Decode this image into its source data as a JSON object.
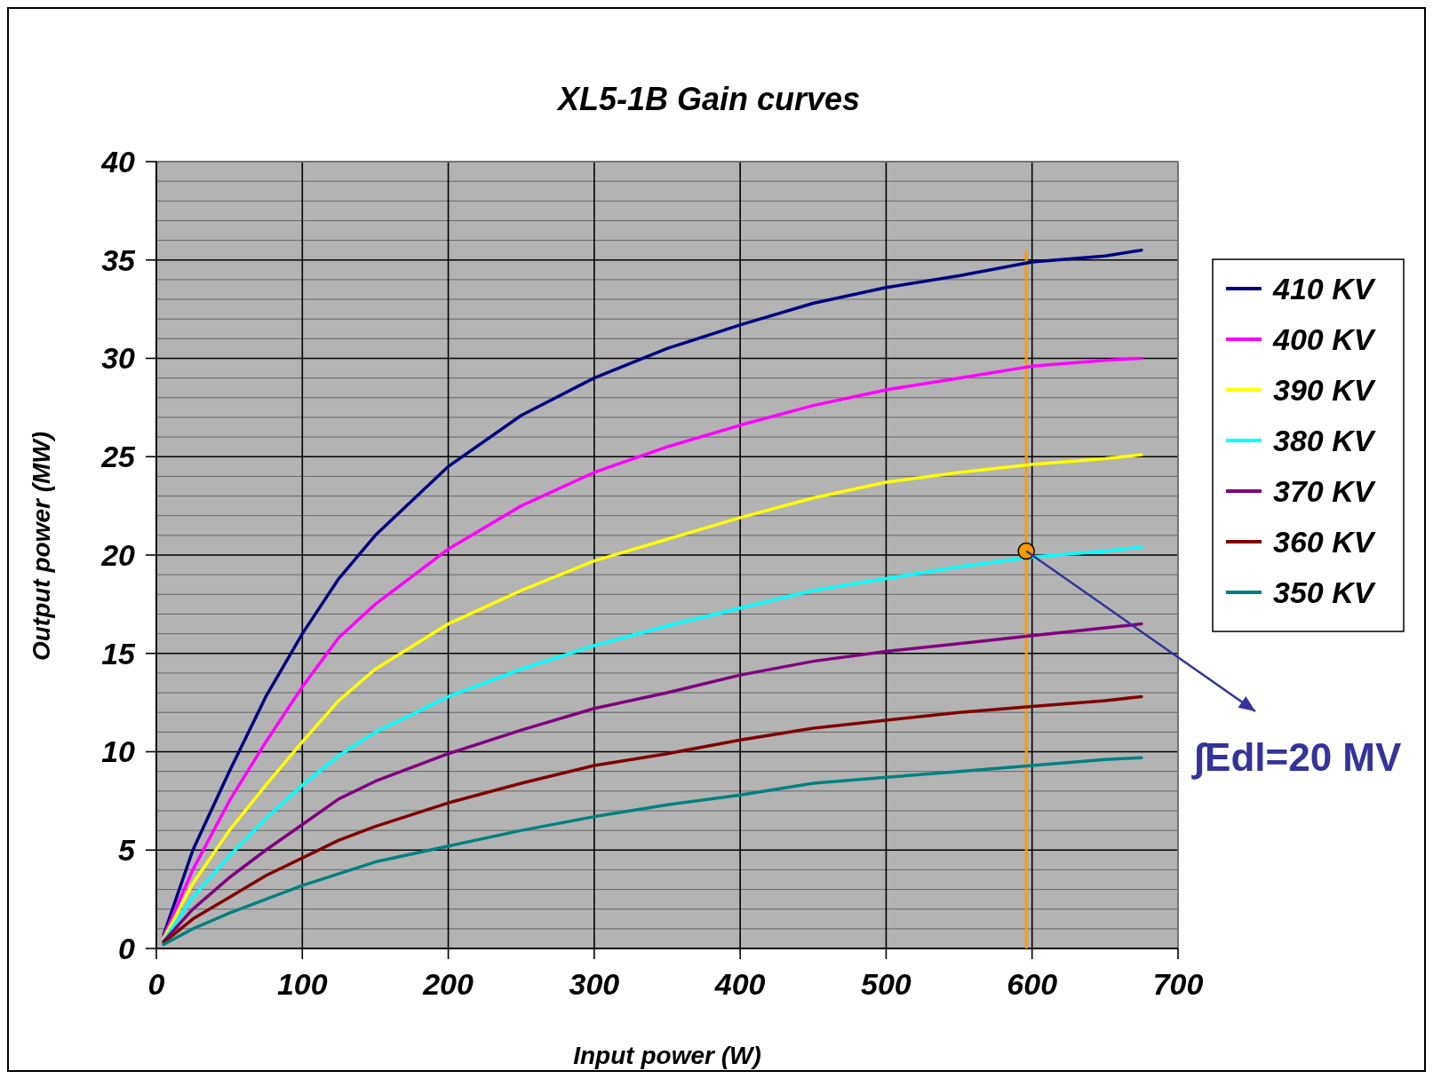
{
  "chart_data": {
    "type": "line",
    "title": "XL5-1B Gain curves",
    "xlabel": "Input power (W)",
    "ylabel": "Output power (MW)",
    "x": [
      5,
      25,
      50,
      75,
      100,
      125,
      150,
      200,
      250,
      300,
      350,
      400,
      450,
      500,
      550,
      600,
      650,
      675
    ],
    "series": [
      {
        "name": "410 KV",
        "color": "#000080",
        "values": [
          0.7,
          5,
          9,
          12.8,
          16,
          18.8,
          21,
          24.5,
          27.1,
          29,
          30.5,
          31.7,
          32.8,
          33.6,
          34.2,
          34.9,
          35.2,
          35.5
        ]
      },
      {
        "name": "400 KV",
        "color": "#ff00ff",
        "values": [
          0.6,
          4,
          7.5,
          10.5,
          13.3,
          15.8,
          17.5,
          20.3,
          22.5,
          24.2,
          25.5,
          26.6,
          27.6,
          28.4,
          29,
          29.6,
          29.9,
          30
        ]
      },
      {
        "name": "390 KV",
        "color": "#ffff00",
        "values": [
          0.5,
          3.3,
          6,
          8.3,
          10.5,
          12.6,
          14.2,
          16.5,
          18.2,
          19.7,
          20.8,
          21.9,
          22.9,
          23.7,
          24.2,
          24.6,
          24.9,
          25.1
        ]
      },
      {
        "name": "380 KV",
        "color": "#00ffff",
        "values": [
          0.4,
          2.6,
          4.7,
          6.6,
          8.3,
          9.8,
          11,
          12.8,
          14.2,
          15.4,
          16.4,
          17.3,
          18.2,
          18.8,
          19.4,
          19.9,
          20.2,
          20.4
        ]
      },
      {
        "name": "370 KV",
        "color": "#800080",
        "values": [
          0.35,
          2,
          3.6,
          5,
          6.3,
          7.6,
          8.5,
          9.9,
          11.1,
          12.2,
          13,
          13.9,
          14.6,
          15.1,
          15.5,
          15.9,
          16.3,
          16.5
        ]
      },
      {
        "name": "360 KV",
        "color": "#800000",
        "values": [
          0.3,
          1.5,
          2.6,
          3.7,
          4.6,
          5.5,
          6.2,
          7.4,
          8.4,
          9.3,
          9.9,
          10.6,
          11.2,
          11.6,
          12,
          12.3,
          12.6,
          12.8
        ]
      },
      {
        "name": "350 KV",
        "color": "#008080",
        "values": [
          0.2,
          1,
          1.8,
          2.5,
          3.2,
          3.8,
          4.4,
          5.2,
          6,
          6.7,
          7.3,
          7.8,
          8.4,
          8.7,
          9,
          9.3,
          9.6,
          9.7
        ]
      },
      {
        "type": "scatter",
        "color": "#ff9900",
        "x": [
          596
        ],
        "values": [
          20.2
        ],
        "marker": "circle"
      }
    ],
    "xlim": [
      0,
      700
    ],
    "xticks": [
      0,
      100,
      200,
      300,
      400,
      500,
      600,
      700
    ],
    "ylim": [
      0,
      40
    ],
    "yticks": [
      0,
      {
        "value": 1,
        "label": null
      },
      {
        "value": 2,
        "label": null
      },
      {
        "value": 3,
        "label": null
      },
      {
        "value": 4,
        "label": null
      },
      5,
      {
        "value": 6,
        "label": null
      },
      {
        "value": 7,
        "label": null
      },
      {
        "value": 8,
        "label": null
      },
      {
        "value": 9,
        "label": null
      },
      10,
      {
        "value": 11,
        "label": null
      },
      {
        "value": 12,
        "label": null
      },
      {
        "value": 13,
        "label": null
      },
      {
        "value": 14,
        "label": null
      },
      15,
      {
        "value": 16,
        "label": null
      },
      {
        "value": 17,
        "label": null
      },
      {
        "value": 18,
        "label": null
      },
      {
        "value": 19,
        "label": null
      },
      20,
      {
        "value": 21,
        "label": null
      },
      {
        "value": 22,
        "label": null
      },
      {
        "value": 23,
        "label": null
      },
      {
        "value": 24,
        "label": null
      },
      25,
      {
        "value": 26,
        "label": null
      },
      {
        "value": 27,
        "label": null
      },
      {
        "value": 28,
        "label": null
      },
      {
        "value": 29,
        "label": null
      },
      30,
      {
        "value": 31,
        "label": null
      },
      {
        "value": 32,
        "label": null
      },
      {
        "value": 33,
        "label": null
      },
      {
        "value": 34,
        "label": null
      },
      35,
      {
        "value": 36,
        "label": null
      },
      {
        "value": 37,
        "label": null
      },
      {
        "value": 38,
        "label": null
      },
      {
        "value": 39,
        "label": null
      },
      40
    ],
    "ref_lines": [
      {
        "axis": "x",
        "value": 596,
        "color": "#ff9900"
      }
    ],
    "annotations": [
      {
        "text": "∫Edl=20 MV",
        "x": 596,
        "y": 20.2
      }
    ],
    "grid": true,
    "legend": "right",
    "marker": "none",
    "line_style": "solid"
  }
}
